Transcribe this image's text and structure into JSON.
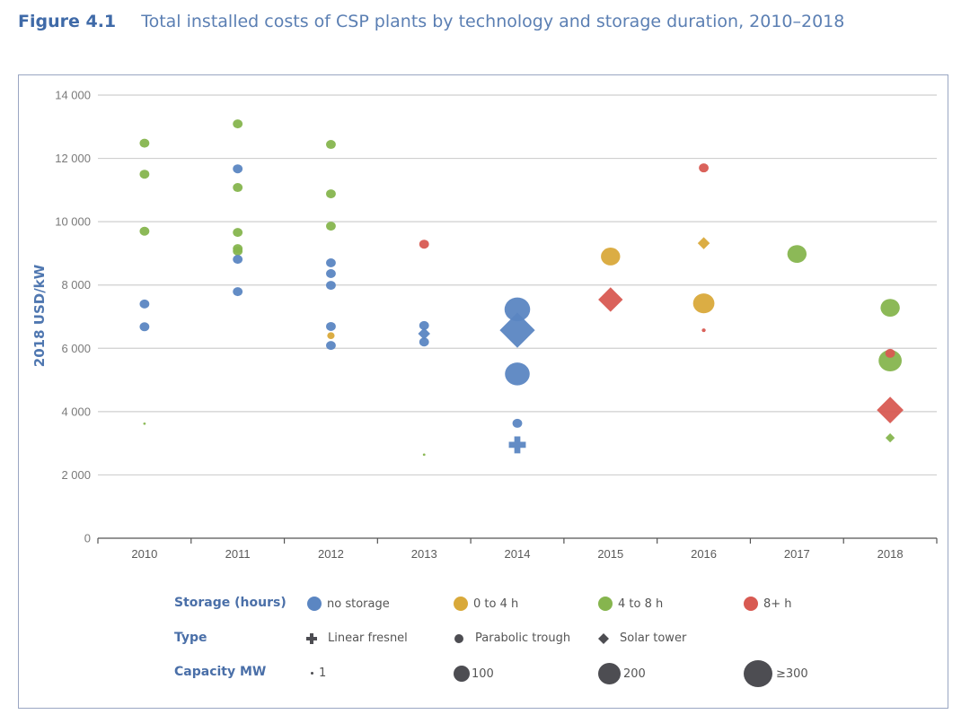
{
  "figure": {
    "number": "Figure 4.1",
    "title": "Total installed costs of CSP plants by technology and storage duration, 2010–2018"
  },
  "colors": {
    "no_storage": "#5b86c2",
    "0_to_4h": "#d9a93a",
    "4_to_8h": "#86b54e",
    "8plus_h": "#d85a52",
    "legend_marker": "#4d4d52",
    "gridline": "#cfcfcf",
    "axis": "#555555"
  },
  "chart_data": {
    "type": "scatter",
    "title": "Total installed costs of CSP plants by technology and storage duration, 2010–2018",
    "xlabel": "",
    "ylabel": "2018 USD/kW",
    "categories": [
      "2010",
      "2011",
      "2012",
      "2013",
      "2014",
      "2015",
      "2016",
      "2017",
      "2018"
    ],
    "ylim": [
      0,
      14000
    ],
    "yticks": [
      0,
      2000,
      4000,
      6000,
      8000,
      10000,
      12000,
      14000
    ],
    "ytick_labels": [
      "0",
      "2 000",
      "4 000",
      "6 000",
      "8 000",
      "10 000",
      "12 000",
      "14 000"
    ],
    "grid": true,
    "legend_position": "bottom",
    "points": [
      {
        "year": "2010",
        "value": 12480,
        "storage": "4_to_8h",
        "type": "parabolic_trough",
        "capacity_mw": 50
      },
      {
        "year": "2010",
        "value": 11500,
        "storage": "4_to_8h",
        "type": "parabolic_trough",
        "capacity_mw": 50
      },
      {
        "year": "2010",
        "value": 9700,
        "storage": "4_to_8h",
        "type": "parabolic_trough",
        "capacity_mw": 50
      },
      {
        "year": "2010",
        "value": 7400,
        "storage": "no_storage",
        "type": "parabolic_trough",
        "capacity_mw": 50
      },
      {
        "year": "2010",
        "value": 6680,
        "storage": "no_storage",
        "type": "parabolic_trough",
        "capacity_mw": 50
      },
      {
        "year": "2010",
        "value": 3620,
        "storage": "4_to_8h",
        "type": "parabolic_trough",
        "capacity_mw": 1
      },
      {
        "year": "2011",
        "value": 13090,
        "storage": "4_to_8h",
        "type": "parabolic_trough",
        "capacity_mw": 50
      },
      {
        "year": "2011",
        "value": 11670,
        "storage": "no_storage",
        "type": "parabolic_trough",
        "capacity_mw": 50
      },
      {
        "year": "2011",
        "value": 11080,
        "storage": "4_to_8h",
        "type": "parabolic_trough",
        "capacity_mw": 50
      },
      {
        "year": "2011",
        "value": 9660,
        "storage": "4_to_8h",
        "type": "parabolic_trough",
        "capacity_mw": 50
      },
      {
        "year": "2011",
        "value": 9150,
        "storage": "4_to_8h",
        "type": "parabolic_trough",
        "capacity_mw": 50
      },
      {
        "year": "2011",
        "value": 9070,
        "storage": "4_to_8h",
        "type": "parabolic_trough",
        "capacity_mw": 50
      },
      {
        "year": "2011",
        "value": 8810,
        "storage": "no_storage",
        "type": "parabolic_trough",
        "capacity_mw": 50
      },
      {
        "year": "2011",
        "value": 7790,
        "storage": "no_storage",
        "type": "parabolic_trough",
        "capacity_mw": 50
      },
      {
        "year": "2012",
        "value": 12440,
        "storage": "4_to_8h",
        "type": "parabolic_trough",
        "capacity_mw": 50
      },
      {
        "year": "2012",
        "value": 10880,
        "storage": "4_to_8h",
        "type": "parabolic_trough",
        "capacity_mw": 50
      },
      {
        "year": "2012",
        "value": 9860,
        "storage": "4_to_8h",
        "type": "parabolic_trough",
        "capacity_mw": 50
      },
      {
        "year": "2012",
        "value": 8700,
        "storage": "no_storage",
        "type": "parabolic_trough",
        "capacity_mw": 50
      },
      {
        "year": "2012",
        "value": 8360,
        "storage": "no_storage",
        "type": "parabolic_trough",
        "capacity_mw": 50
      },
      {
        "year": "2012",
        "value": 7990,
        "storage": "no_storage",
        "type": "parabolic_trough",
        "capacity_mw": 50
      },
      {
        "year": "2012",
        "value": 6690,
        "storage": "no_storage",
        "type": "parabolic_trough",
        "capacity_mw": 50
      },
      {
        "year": "2012",
        "value": 6400,
        "storage": "0_to_4h",
        "type": "parabolic_trough",
        "capacity_mw": 20
      },
      {
        "year": "2012",
        "value": 6090,
        "storage": "no_storage",
        "type": "parabolic_trough",
        "capacity_mw": 50
      },
      {
        "year": "2013",
        "value": 9290,
        "storage": "8plus_h",
        "type": "parabolic_trough",
        "capacity_mw": 50
      },
      {
        "year": "2013",
        "value": 6720,
        "storage": "no_storage",
        "type": "parabolic_trough",
        "capacity_mw": 50
      },
      {
        "year": "2013",
        "value": 6460,
        "storage": "no_storage",
        "type": "solar_tower",
        "capacity_mw": 50
      },
      {
        "year": "2013",
        "value": 6200,
        "storage": "no_storage",
        "type": "parabolic_trough",
        "capacity_mw": 50
      },
      {
        "year": "2013",
        "value": 2640,
        "storage": "4_to_8h",
        "type": "parabolic_trough",
        "capacity_mw": 1
      },
      {
        "year": "2014",
        "value": 7230,
        "storage": "no_storage",
        "type": "parabolic_trough",
        "capacity_mw": 280
      },
      {
        "year": "2014",
        "value": 6570,
        "storage": "no_storage",
        "type": "solar_tower",
        "capacity_mw": 377
      },
      {
        "year": "2014",
        "value": 5190,
        "storage": "no_storage",
        "type": "parabolic_trough",
        "capacity_mw": 250
      },
      {
        "year": "2014",
        "value": 3630,
        "storage": "no_storage",
        "type": "parabolic_trough",
        "capacity_mw": 50
      },
      {
        "year": "2014",
        "value": 2950,
        "storage": "no_storage",
        "type": "linear_fresnel",
        "capacity_mw": 125
      },
      {
        "year": "2015",
        "value": 8900,
        "storage": "0_to_4h",
        "type": "parabolic_trough",
        "capacity_mw": 100
      },
      {
        "year": "2015",
        "value": 7540,
        "storage": "8plus_h",
        "type": "solar_tower",
        "capacity_mw": 110
      },
      {
        "year": "2016",
        "value": 11700,
        "storage": "8plus_h",
        "type": "parabolic_trough",
        "capacity_mw": 50
      },
      {
        "year": "2016",
        "value": 9320,
        "storage": "0_to_4h",
        "type": "solar_tower",
        "capacity_mw": 50
      },
      {
        "year": "2016",
        "value": 7420,
        "storage": "0_to_4h",
        "type": "parabolic_trough",
        "capacity_mw": 150
      },
      {
        "year": "2016",
        "value": 6570,
        "storage": "8plus_h",
        "type": "parabolic_trough",
        "capacity_mw": 5
      },
      {
        "year": "2017",
        "value": 8980,
        "storage": "4_to_8h",
        "type": "parabolic_trough",
        "capacity_mw": 100
      },
      {
        "year": "2018",
        "value": 7280,
        "storage": "4_to_8h",
        "type": "parabolic_trough",
        "capacity_mw": 100
      },
      {
        "year": "2018",
        "value": 5610,
        "storage": "4_to_8h",
        "type": "parabolic_trough",
        "capacity_mw": 200
      },
      {
        "year": "2018",
        "value": 5840,
        "storage": "8plus_h",
        "type": "parabolic_trough",
        "capacity_mw": 50
      },
      {
        "year": "2018",
        "value": 4050,
        "storage": "8plus_h",
        "type": "solar_tower",
        "capacity_mw": 150
      },
      {
        "year": "2018",
        "value": 3170,
        "storage": "4_to_8h",
        "type": "solar_tower",
        "capacity_mw": 20
      }
    ]
  },
  "legend": {
    "storage": {
      "heading": "Storage (hours)",
      "items": [
        {
          "key": "no_storage",
          "label": "no storage"
        },
        {
          "key": "0_to_4h",
          "label": "0 to 4 h"
        },
        {
          "key": "4_to_8h",
          "label": "4 to 8 h"
        },
        {
          "key": "8plus_h",
          "label": "8+ h"
        }
      ]
    },
    "type": {
      "heading": "Type",
      "items": [
        {
          "key": "linear_fresnel",
          "label": "Linear fresnel",
          "icon": "plus-icon"
        },
        {
          "key": "parabolic_trough",
          "label": "Parabolic trough",
          "icon": "circle-icon"
        },
        {
          "key": "solar_tower",
          "label": "Solar tower",
          "icon": "diamond-icon"
        }
      ]
    },
    "capacity": {
      "heading": "Capacity MW",
      "items": [
        {
          "value": 1,
          "label": "1"
        },
        {
          "value": 100,
          "label": "100"
        },
        {
          "value": 200,
          "label": "200"
        },
        {
          "value": 300,
          "label": "≥300"
        }
      ]
    }
  }
}
